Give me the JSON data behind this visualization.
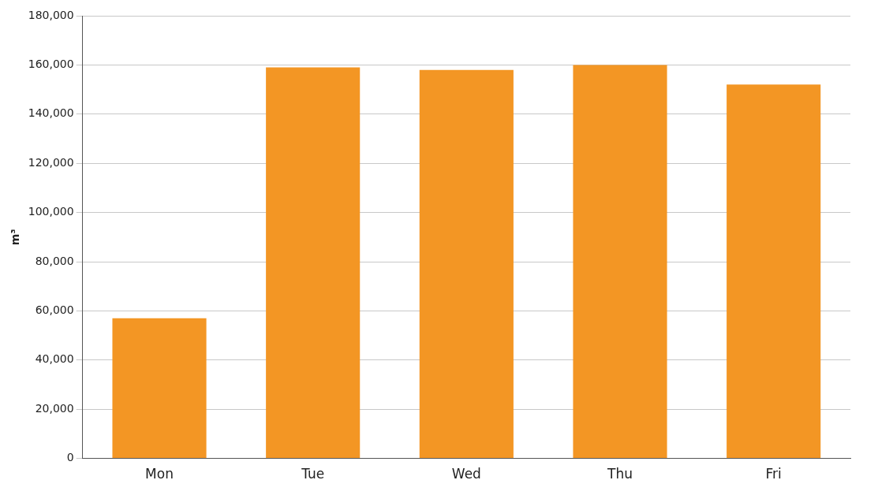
{
  "chart_data": {
    "type": "bar",
    "ylabel": "m³",
    "categories": [
      "Mon",
      "Tue",
      "Wed",
      "Thu",
      "Fri"
    ],
    "values": [
      57000,
      159000,
      158000,
      160000,
      152000
    ],
    "color": "#f39624",
    "ylim": [
      0,
      180000
    ],
    "yticks": [
      0,
      {
        "value": 20000,
        "label": "20,000"
      },
      {
        "value": 40000,
        "label": "40,000"
      },
      {
        "value": 60000,
        "label": "60,000"
      },
      {
        "value": 80000,
        "label": "80,000"
      },
      {
        "value": 100000,
        "label": "100,000"
      },
      {
        "value": 120000,
        "label": "120,000"
      },
      {
        "value": 140000,
        "label": "140,000"
      },
      {
        "value": 160000,
        "label": "160,000"
      },
      {
        "value": 180000,
        "label": "180,000"
      }
    ],
    "grid": "y",
    "legend": false
  }
}
